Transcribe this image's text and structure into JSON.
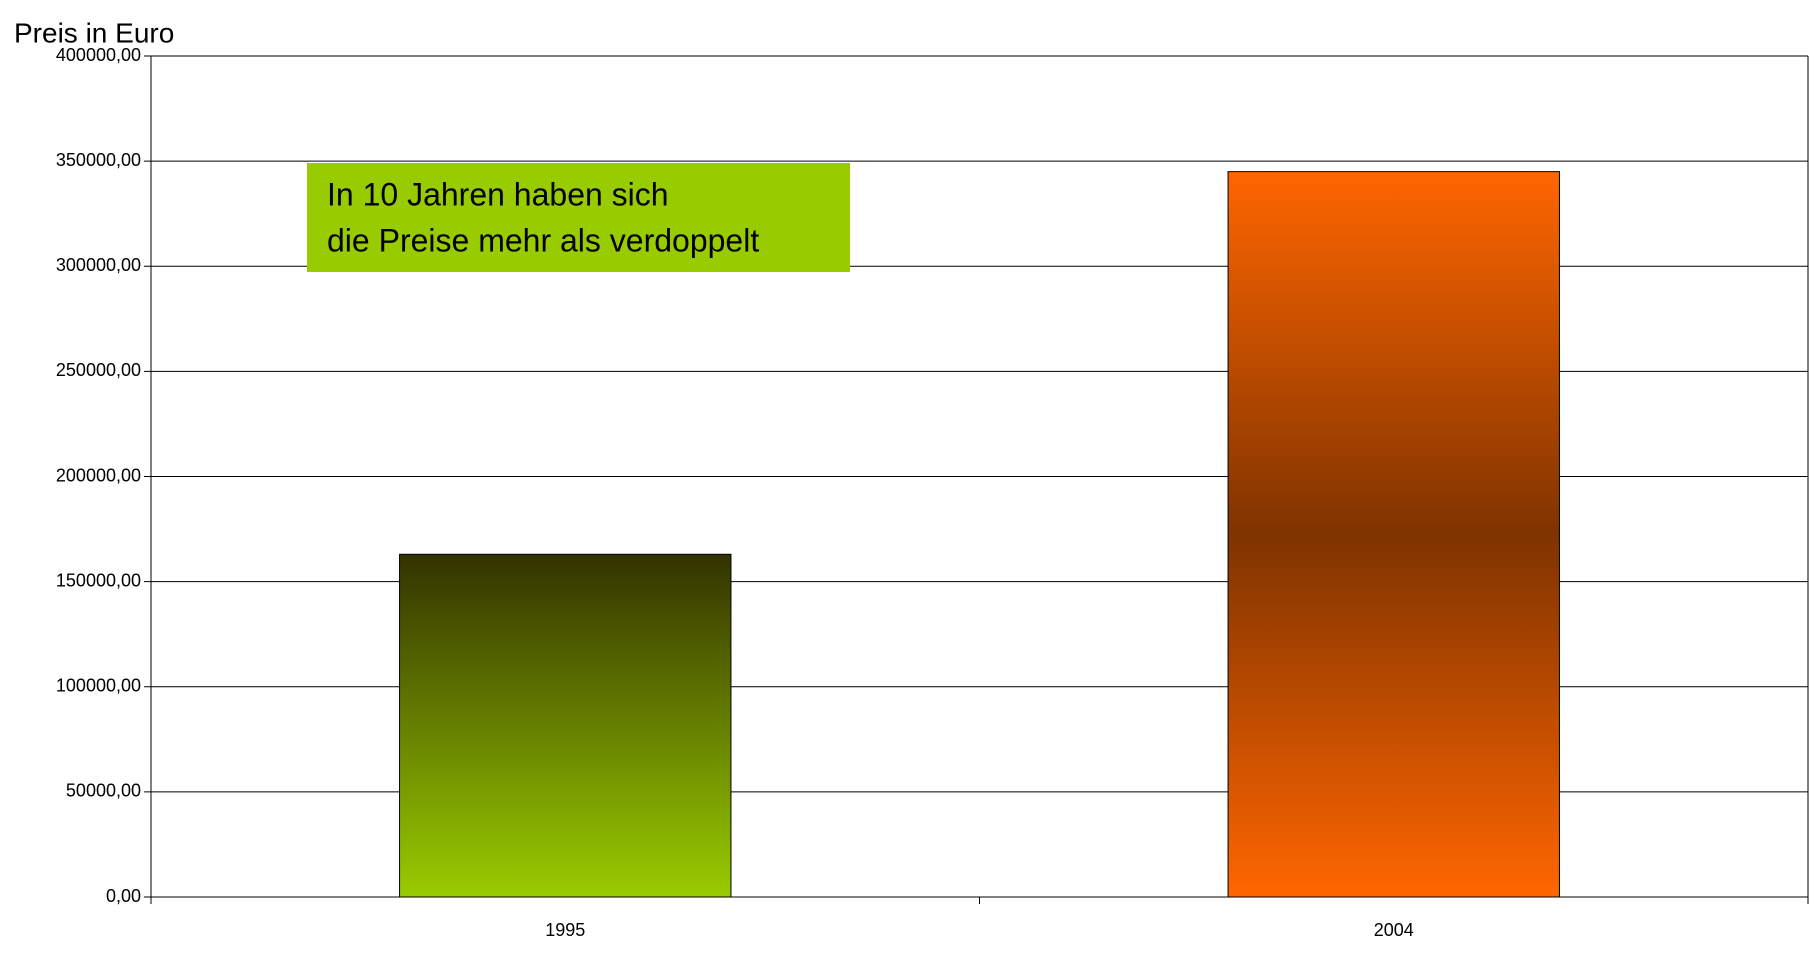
{
  "chart_data": {
    "type": "bar",
    "y_axis_label": "Preis in Euro",
    "categories": [
      "1995",
      "2004"
    ],
    "values": [
      163000,
      345000
    ],
    "colors": [
      "#99cc00",
      "#ff6600"
    ],
    "ylim": [
      0,
      400000
    ],
    "yticks": [
      {
        "value": 0,
        "label": "0,00"
      },
      {
        "value": 50000,
        "label": "50000,00"
      },
      {
        "value": 100000,
        "label": "100000,00"
      },
      {
        "value": 150000,
        "label": "150000,00"
      },
      {
        "value": 200000,
        "label": "200000,00"
      },
      {
        "value": 250000,
        "label": "250000,00"
      },
      {
        "value": 300000,
        "label": "300000,00"
      },
      {
        "value": 350000,
        "label": "350000,00"
      },
      {
        "value": 400000,
        "label": "400000,00"
      }
    ],
    "grid": true,
    "annotation": [
      "In 10 Jahren haben sich",
      "die Preise mehr als verdoppelt"
    ],
    "annotation_color": "#99cc00"
  }
}
